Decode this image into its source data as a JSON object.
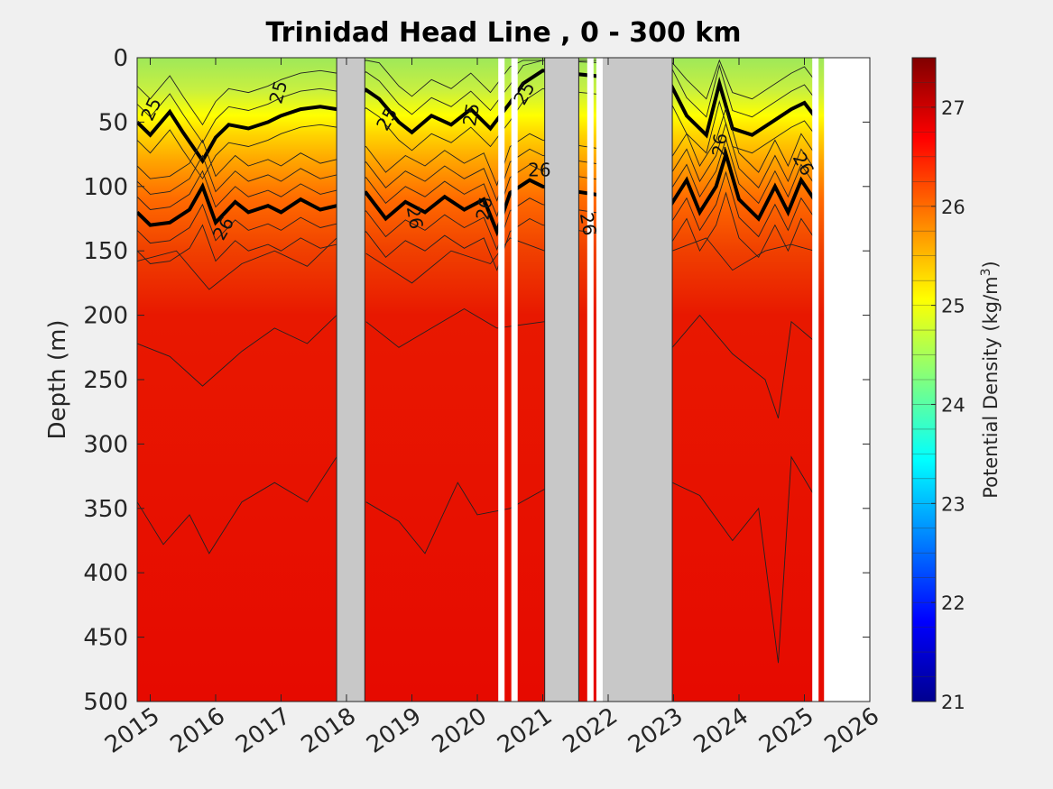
{
  "chart_data": {
    "type": "heatmap",
    "title": "Trinidad Head Line , 0 - 300 km",
    "ylabel": "Depth (m)",
    "xlabel": "",
    "x_ticks": [
      "2015",
      "2016",
      "2017",
      "2018",
      "2019",
      "2020",
      "2021",
      "2022",
      "2023",
      "2024",
      "2025",
      "2026"
    ],
    "y_ticks": [
      "0",
      "50",
      "100",
      "150",
      "200",
      "250",
      "300",
      "350",
      "400",
      "450",
      "500"
    ],
    "xlim": [
      2014.8,
      2026.0
    ],
    "ylim": [
      0,
      500
    ],
    "y_reversed": true,
    "colorbar": {
      "label": "Potential Density (kg/m",
      "label_superscript": "3",
      "label_close": ")",
      "range": [
        21,
        27.5
      ],
      "ticks": [
        "21",
        "22",
        "23",
        "24",
        "25",
        "26",
        "27"
      ],
      "colormap": "jet"
    },
    "contour_labels": [
      "25",
      "25",
      "25",
      "25",
      "25",
      "26",
      "26",
      "26",
      "26",
      "26",
      "26",
      "26"
    ],
    "isopycnal_depths_m": {
      "sigma_25": [
        [
          2014.8,
          50
        ],
        [
          2015.0,
          60
        ],
        [
          2015.3,
          42
        ],
        [
          2015.5,
          58
        ],
        [
          2015.8,
          80
        ],
        [
          2016.0,
          62
        ],
        [
          2016.2,
          52
        ],
        [
          2016.5,
          55
        ],
        [
          2016.8,
          50
        ],
        [
          2017.0,
          45
        ],
        [
          2017.3,
          40
        ],
        [
          2017.6,
          38
        ],
        [
          2017.85,
          40
        ],
        [
          2018.3,
          25
        ],
        [
          2018.5,
          32
        ],
        [
          2018.8,
          50
        ],
        [
          2019.0,
          58
        ],
        [
          2019.3,
          45
        ],
        [
          2019.6,
          52
        ],
        [
          2019.9,
          40
        ],
        [
          2020.2,
          55
        ],
        [
          2020.5,
          35
        ],
        [
          2020.7,
          20
        ],
        [
          2021.0,
          10
        ],
        [
          2022.95,
          20
        ],
        [
          2023.2,
          45
        ],
        [
          2023.5,
          60
        ],
        [
          2023.7,
          20
        ],
        [
          2023.9,
          55
        ],
        [
          2024.2,
          60
        ],
        [
          2024.5,
          50
        ],
        [
          2024.8,
          40
        ],
        [
          2025.0,
          35
        ],
        [
          2025.15,
          45
        ]
      ],
      "sigma_26": [
        [
          2014.8,
          120
        ],
        [
          2015.0,
          130
        ],
        [
          2015.3,
          128
        ],
        [
          2015.6,
          118
        ],
        [
          2015.8,
          100
        ],
        [
          2016.0,
          128
        ],
        [
          2016.3,
          112
        ],
        [
          2016.5,
          120
        ],
        [
          2016.8,
          115
        ],
        [
          2017.0,
          120
        ],
        [
          2017.3,
          110
        ],
        [
          2017.6,
          118
        ],
        [
          2017.85,
          115
        ],
        [
          2018.3,
          105
        ],
        [
          2018.6,
          125
        ],
        [
          2018.9,
          112
        ],
        [
          2019.2,
          120
        ],
        [
          2019.5,
          108
        ],
        [
          2019.8,
          118
        ],
        [
          2020.1,
          110
        ],
        [
          2020.3,
          135
        ],
        [
          2020.5,
          105
        ],
        [
          2020.8,
          95
        ],
        [
          2021.0,
          100
        ],
        [
          2022.95,
          115
        ],
        [
          2023.2,
          95
        ],
        [
          2023.4,
          120
        ],
        [
          2023.65,
          100
        ],
        [
          2023.8,
          75
        ],
        [
          2024.0,
          110
        ],
        [
          2024.3,
          125
        ],
        [
          2024.55,
          100
        ],
        [
          2024.75,
          120
        ],
        [
          2024.95,
          95
        ],
        [
          2025.15,
          110
        ]
      ]
    },
    "data_gaps": [
      {
        "start": 2017.85,
        "end": 2018.28
      },
      {
        "start": 2021.03,
        "end": 2021.55
      },
      {
        "start": 2021.88,
        "end": 2022.98
      }
    ],
    "no_data_after": 2025.3
  }
}
